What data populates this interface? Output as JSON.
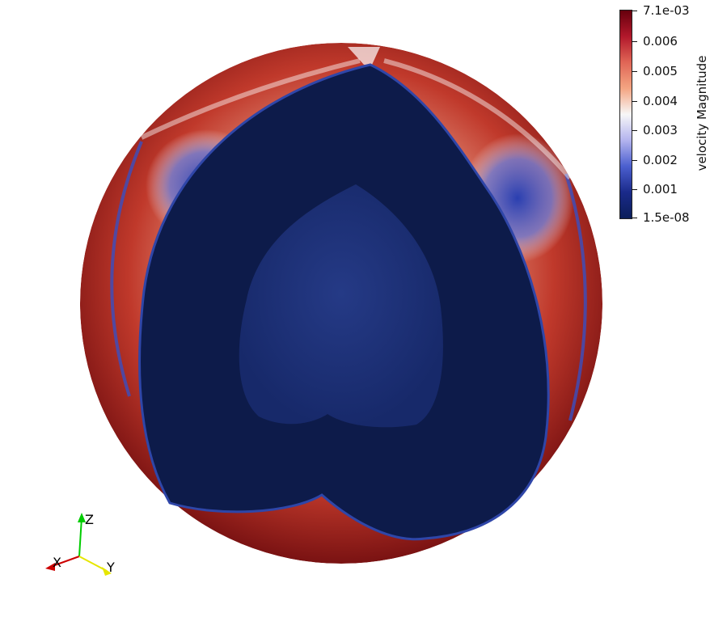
{
  "legend": {
    "title": "velocity Magnitude",
    "ticks": [
      "7.1e-03",
      "0.006",
      "0.005",
      "0.004",
      "0.003",
      "0.002",
      "0.001",
      "1.5e-08"
    ],
    "colormap": [
      "#67000d",
      "#b2182b",
      "#e06656",
      "#f4a582",
      "#f7f7f7",
      "#b3b3ee",
      "#4b5fcf",
      "#1a2a8a",
      "#0b1e5a"
    ]
  },
  "axes_triad": {
    "labels": {
      "z": "Z",
      "x": "X",
      "y": "Y"
    },
    "colors": {
      "z": "#00cc00",
      "x": "#cc0000",
      "y": "#e6e600"
    }
  },
  "scene": {
    "outer_color": "#a01215",
    "cut_color": "#0d1b4a",
    "inner_color": "#1d3276",
    "background": "#ffffff"
  }
}
